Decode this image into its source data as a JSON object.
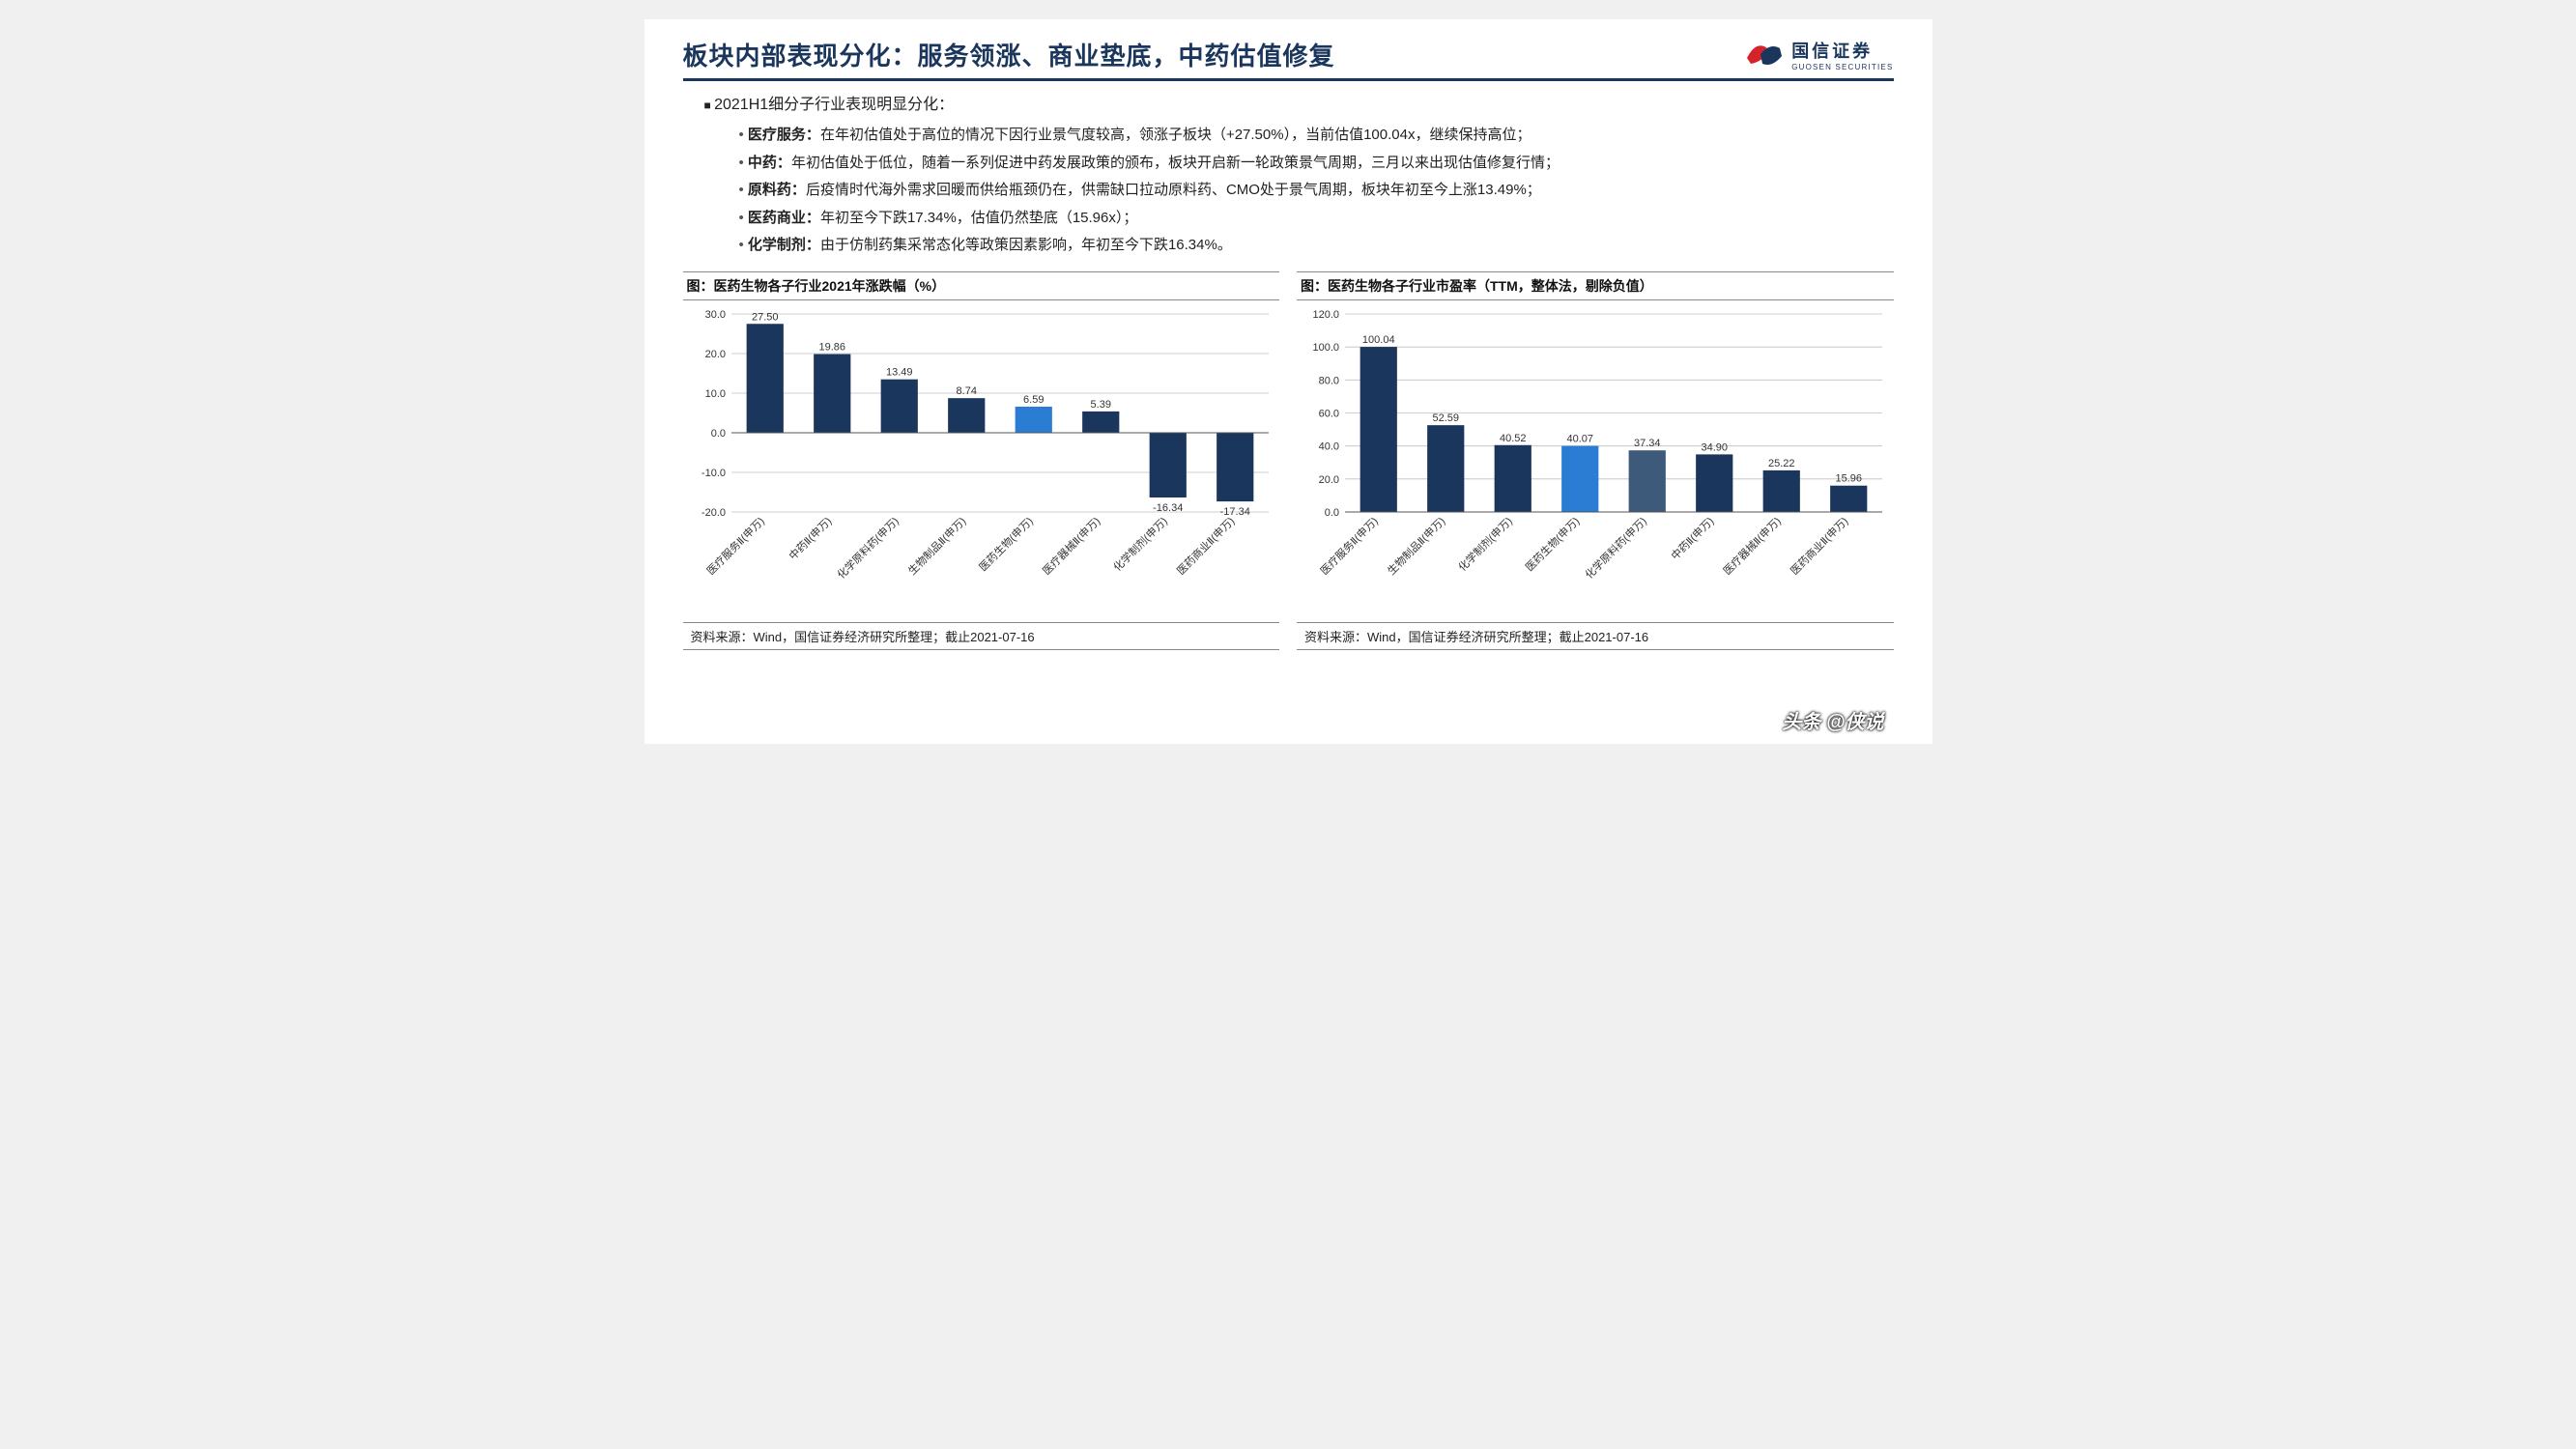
{
  "header": {
    "title": "板块内部表现分化：服务领涨、商业垫底，中药估值修复",
    "logo_cn": "国信证券",
    "logo_en": "GUOSEN SECURITIES"
  },
  "bullets": {
    "intro": "2021H1细分子行业表现明显分化：",
    "items": [
      {
        "label": "医疗服务：",
        "text": "在年初估值处于高位的情况下因行业景气度较高，领涨子板块（+27.50%），当前估值100.04x，继续保持高位；"
      },
      {
        "label": "中药：",
        "text": "年初估值处于低位，随着一系列促进中药发展政策的颁布，板块开启新一轮政策景气周期，三月以来出现估值修复行情；"
      },
      {
        "label": "原料药：",
        "text": "后疫情时代海外需求回暖而供给瓶颈仍在，供需缺口拉动原料药、CMO处于景气周期，板块年初至今上涨13.49%；"
      },
      {
        "label": "医药商业：",
        "text": "年初至今下跌17.34%，估值仍然垫底（15.96x）；"
      },
      {
        "label": "化学制剂：",
        "text": "由于仿制药集采常态化等政策因素影响，年初至今下跌16.34%。"
      }
    ]
  },
  "chart1": {
    "title": "图：医药生物各子行业2021年涨跌幅（%）",
    "type": "bar",
    "ylim": [
      -20,
      30
    ],
    "ytick_step": 10,
    "yticks": [
      "-20.0",
      "-10.0",
      "0.0",
      "10.0",
      "20.0",
      "30.0"
    ],
    "categories": [
      "医疗服务Ⅱ(申万)",
      "中药Ⅱ(申万)",
      "化学原料药(申万)",
      "生物制品Ⅱ(申万)",
      "医药生物(申万)",
      "医疗器械Ⅱ(申万)",
      "化学制剂(申万)",
      "医药商业Ⅱ(申万)"
    ],
    "values": [
      27.5,
      19.86,
      13.49,
      8.74,
      6.59,
      5.39,
      -16.34,
      -17.34
    ],
    "bar_colors": [
      "#1b365d",
      "#1b365d",
      "#1b365d",
      "#1b365d",
      "#2b7cd3",
      "#1b365d",
      "#1b365d",
      "#1b365d"
    ],
    "grid_color": "#bfbfbf",
    "axis_color": "#888",
    "label_fontsize": 11,
    "tick_fontsize": 11,
    "value_fontsize": 11,
    "source": "资料来源：Wind，国信证券经济研究所整理；截止2021-07-16"
  },
  "chart2": {
    "title": "图：医药生物各子行业市盈率（TTM，整体法，剔除负值）",
    "type": "bar",
    "ylim": [
      0,
      120
    ],
    "ytick_step": 20,
    "yticks": [
      "0.0",
      "20.0",
      "40.0",
      "60.0",
      "80.0",
      "100.0",
      "120.0"
    ],
    "categories": [
      "医疗服务Ⅱ(申万)",
      "生物制品Ⅱ(申万)",
      "化学制剂(申万)",
      "医药生物(申万)",
      "化学原料药(申万)",
      "中药Ⅱ(申万)",
      "医疗器械Ⅱ(申万)",
      "医药商业Ⅱ(申万)"
    ],
    "values": [
      100.04,
      52.59,
      40.52,
      40.07,
      37.34,
      34.9,
      25.22,
      15.96
    ],
    "bar_colors": [
      "#1b365d",
      "#1b365d",
      "#1b365d",
      "#2b7cd3",
      "#3d5a7a",
      "#1b365d",
      "#1b365d",
      "#1b365d"
    ],
    "grid_color": "#bfbfbf",
    "axis_color": "#888",
    "label_fontsize": 11,
    "tick_fontsize": 11,
    "value_fontsize": 11,
    "source": "资料来源：Wind，国信证券经济研究所整理；截止2021-07-16"
  },
  "watermark": "头条 @侠说"
}
